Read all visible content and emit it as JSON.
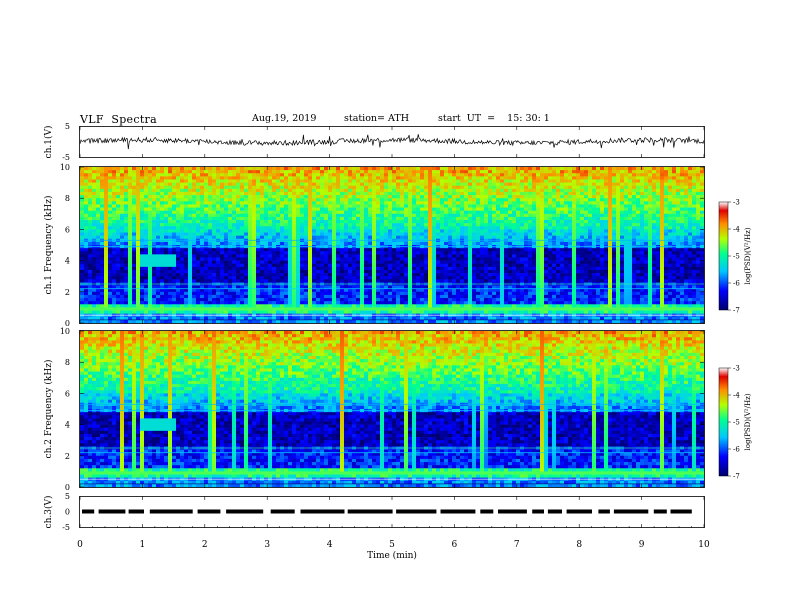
{
  "header": {
    "title": "VLF  Spectra",
    "date": "Aug.19, 2019",
    "station": "station= ATH",
    "start_ut": "start  UT  =    15: 30: 1"
  },
  "chart_data": [
    {
      "type": "line",
      "panel": "ch1-waveform",
      "ylabel": "ch.1(V)",
      "ylim": [
        -5,
        5
      ],
      "yticks": [
        "5",
        "-5"
      ],
      "xlim": [
        0,
        10
      ],
      "description_values": "noisy trace centred near 0 V, approx. ±1.2 V"
    },
    {
      "type": "heatmap",
      "panel": "ch1-spectrogram",
      "ylabel": "ch.1  Frequency  (kHz)",
      "ylim": [
        0,
        10
      ],
      "yticks": [
        "0",
        "2",
        "4",
        "6",
        "8",
        "10"
      ],
      "xlim": [
        0,
        10
      ],
      "colorbar": {
        "label": "log(PSD)(V²/Hz)",
        "range": [
          -7,
          -3
        ],
        "ticks": [
          "-3",
          "-4",
          "-5",
          "-6",
          "-7"
        ]
      },
      "colors": {
        "low": "#00007a",
        "mid": "#1ec8ff",
        "high": "#e60000"
      }
    },
    {
      "type": "heatmap",
      "panel": "ch2-spectrogram",
      "ylabel": "ch.2  Frequency  (kHz)",
      "ylim": [
        0,
        10
      ],
      "yticks": [
        "0",
        "2",
        "4",
        "6",
        "8",
        "10"
      ],
      "xlim": [
        0,
        10
      ],
      "colorbar": {
        "label": "log(PSD)(V²/Hz)",
        "range": [
          -7,
          -3
        ],
        "ticks": [
          "-3",
          "-4",
          "-5",
          "-6",
          "-7"
        ]
      }
    },
    {
      "type": "line",
      "panel": "ch3-signal",
      "ylabel": "ch.3(V)",
      "ylim": [
        -5,
        5
      ],
      "yticks": [
        "5",
        "0",
        "-5"
      ],
      "xlim": [
        0,
        10
      ],
      "xlabel": "Time  (min)",
      "xticks": [
        "0",
        "1",
        "2",
        "3",
        "4",
        "5",
        "6",
        "7",
        "8",
        "9",
        "10"
      ],
      "description_values": "pulsed digital signal at about 0 V"
    }
  ]
}
